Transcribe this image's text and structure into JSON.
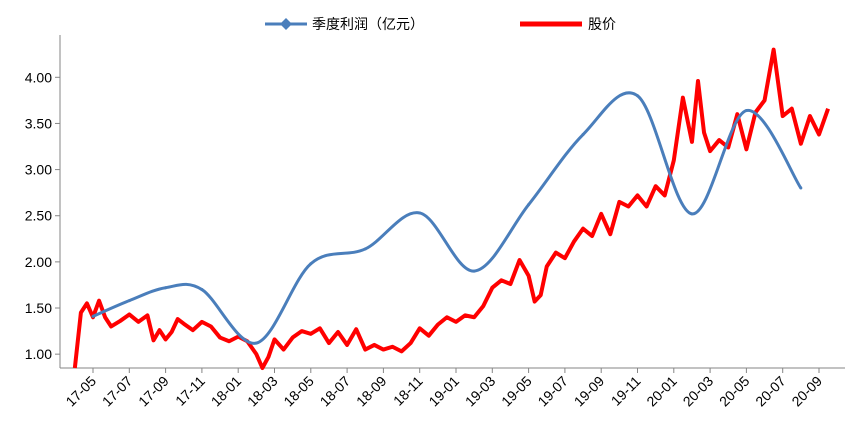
{
  "chart_data": {
    "type": "line",
    "title": "",
    "xlabel": "",
    "ylabel": "",
    "ylim": [
      0.85,
      4.35
    ],
    "y_ticks": [
      "1.00",
      "1.50",
      "2.00",
      "2.50",
      "3.00",
      "3.50",
      "4.00"
    ],
    "x_tick_labels": [
      "17-05",
      "17-07",
      "17-09",
      "17-11",
      "18-01",
      "18-03",
      "18-05",
      "18-07",
      "18-09",
      "18-11",
      "19-01",
      "19-03",
      "19-05",
      "19-07",
      "19-09",
      "19-11",
      "20-01",
      "20-03",
      "20-05",
      "20-07",
      "20-09"
    ],
    "legend_position": "top",
    "grid": false,
    "series": [
      {
        "name": "季度利润（亿元）",
        "color": "#4a7ebb",
        "marker": "diamond",
        "smooth": true,
        "points": [
          [
            "17-05",
            1.41
          ],
          [
            "17-07",
            1.58
          ],
          [
            "17-09",
            1.72
          ],
          [
            "17-11",
            1.7
          ],
          [
            "18-02",
            1.12
          ],
          [
            "18-05",
            1.98
          ],
          [
            "18-08",
            2.14
          ],
          [
            "18-11",
            2.53
          ],
          [
            "19-02",
            1.9
          ],
          [
            "19-05",
            2.62
          ],
          [
            "19-08",
            3.38
          ],
          [
            "19-11",
            3.8
          ],
          [
            "20-02",
            2.52
          ],
          [
            "20-05",
            3.64
          ],
          [
            "20-08",
            2.8
          ]
        ]
      },
      {
        "name": "股价",
        "color": "#ff0000",
        "smooth": false,
        "points": [
          [
            "17-04",
            0.85
          ],
          [
            "17-04",
            1.45
          ],
          [
            "17-04",
            1.55
          ],
          [
            "17-05",
            1.4
          ],
          [
            "17-05",
            1.58
          ],
          [
            "17-05",
            1.4
          ],
          [
            "17-06",
            1.3
          ],
          [
            "17-06",
            1.36
          ],
          [
            "17-07",
            1.43
          ],
          [
            "17-07",
            1.35
          ],
          [
            "17-08",
            1.42
          ],
          [
            "17-08",
            1.15
          ],
          [
            "17-08",
            1.26
          ],
          [
            "17-09",
            1.16
          ],
          [
            "17-09",
            1.24
          ],
          [
            "17-09",
            1.38
          ],
          [
            "17-10",
            1.33
          ],
          [
            "17-10",
            1.26
          ],
          [
            "17-11",
            1.35
          ],
          [
            "17-11",
            1.3
          ],
          [
            "17-12",
            1.18
          ],
          [
            "17-12",
            1.14
          ],
          [
            "18-01",
            1.19
          ],
          [
            "18-01",
            1.14
          ],
          [
            "18-02",
            1.0
          ],
          [
            "18-02",
            0.85
          ],
          [
            "18-02",
            0.97
          ],
          [
            "18-03",
            1.16
          ],
          [
            "18-03",
            1.05
          ],
          [
            "18-04",
            1.18
          ],
          [
            "18-04",
            1.25
          ],
          [
            "18-05",
            1.22
          ],
          [
            "18-05",
            1.28
          ],
          [
            "18-06",
            1.12
          ],
          [
            "18-06",
            1.24
          ],
          [
            "18-07",
            1.1
          ],
          [
            "18-07",
            1.27
          ],
          [
            "18-08",
            1.05
          ],
          [
            "18-08",
            1.1
          ],
          [
            "18-09",
            1.05
          ],
          [
            "18-09",
            1.08
          ],
          [
            "18-10",
            1.03
          ],
          [
            "18-10",
            1.12
          ],
          [
            "18-11",
            1.28
          ],
          [
            "18-11",
            1.2
          ],
          [
            "18-12",
            1.32
          ],
          [
            "18-12",
            1.4
          ],
          [
            "19-01",
            1.35
          ],
          [
            "19-01",
            1.42
          ],
          [
            "19-02",
            1.4
          ],
          [
            "19-02",
            1.52
          ],
          [
            "19-03",
            1.72
          ],
          [
            "19-03",
            1.8
          ],
          [
            "19-04",
            1.76
          ],
          [
            "19-04",
            2.02
          ],
          [
            "19-05",
            1.85
          ],
          [
            "19-05",
            1.57
          ],
          [
            "19-05",
            1.64
          ],
          [
            "19-06",
            1.95
          ],
          [
            "19-06",
            2.1
          ],
          [
            "19-07",
            2.04
          ],
          [
            "19-07",
            2.22
          ],
          [
            "19-08",
            2.36
          ],
          [
            "19-08",
            2.28
          ],
          [
            "19-09",
            2.52
          ],
          [
            "19-09",
            2.3
          ],
          [
            "19-10",
            2.65
          ],
          [
            "19-10",
            2.6
          ],
          [
            "19-11",
            2.72
          ],
          [
            "19-11",
            2.6
          ],
          [
            "19-12",
            2.82
          ],
          [
            "19-12",
            2.72
          ],
          [
            "20-01",
            3.1
          ],
          [
            "20-01",
            3.78
          ],
          [
            "20-02",
            3.3
          ],
          [
            "20-02",
            3.96
          ],
          [
            "20-02",
            3.4
          ],
          [
            "20-03",
            3.2
          ],
          [
            "20-03",
            3.32
          ],
          [
            "20-04",
            3.24
          ],
          [
            "20-04",
            3.6
          ],
          [
            "20-05",
            3.22
          ],
          [
            "20-05",
            3.62
          ],
          [
            "20-06",
            3.75
          ],
          [
            "20-06",
            4.3
          ],
          [
            "20-07",
            3.58
          ],
          [
            "20-07",
            3.66
          ],
          [
            "20-08",
            3.28
          ],
          [
            "20-08",
            3.58
          ],
          [
            "20-09",
            3.38
          ],
          [
            "20-09",
            3.66
          ]
        ]
      }
    ]
  }
}
